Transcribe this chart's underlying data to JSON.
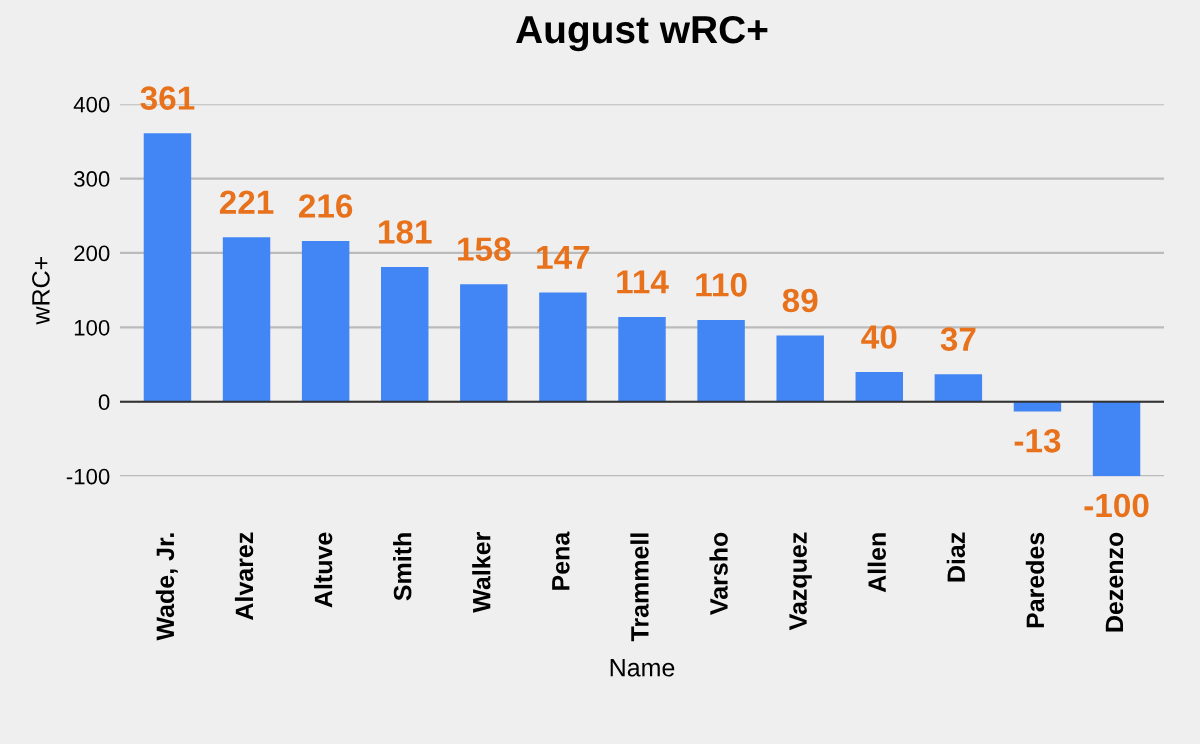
{
  "chart_data": {
    "type": "bar",
    "title": "August wRC+",
    "xlabel": "Name",
    "ylabel": "wRC+",
    "categories": [
      "Wade, Jr.",
      "Alvarez",
      "Altuve",
      "Smith",
      "Walker",
      "Pena",
      "Trammell",
      "Varsho",
      "Vazquez",
      "Allen",
      "Diaz",
      "Paredes",
      "Dezenzo"
    ],
    "series": [
      {
        "color": "#4285f4",
        "values": [
          361,
          221,
          216,
          181,
          158,
          147,
          114,
          110,
          89,
          40,
          37,
          -13,
          -100
        ]
      }
    ],
    "ylim": [
      -100,
      400
    ],
    "yticks": [
      -100,
      0,
      100,
      200,
      300,
      400
    ],
    "grid": "y",
    "data_labels": true,
    "legend": false
  }
}
